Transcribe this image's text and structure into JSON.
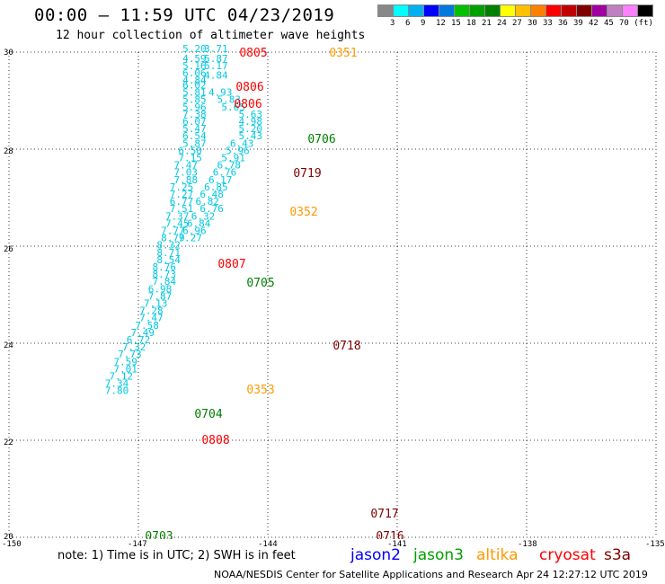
{
  "header": {
    "title": "00:00 – 11:59 UTC 04/23/2019",
    "subtitle": "12 hour collection of altimeter wave heights"
  },
  "colorbar": {
    "colors": [
      "#888888",
      "#00ffff",
      "#00b0f0",
      "#0000ff",
      "#0078dc",
      "#00c000",
      "#00a000",
      "#008000",
      "#ffff00",
      "#ffc000",
      "#ff8000",
      "#ff0000",
      "#c00000",
      "#800000",
      "#a000a0",
      "#c080c0",
      "#ff80ff",
      "#000000"
    ],
    "labels": [
      "3",
      "6",
      "9",
      "12",
      "15",
      "18",
      "21",
      "24",
      "27",
      "30",
      "33",
      "36",
      "39",
      "42",
      "45",
      "70 (ft)"
    ]
  },
  "axes": {
    "y_ticks": [
      "20",
      "22",
      "24",
      "26",
      "28",
      "30"
    ],
    "x_ticks": [
      "-150",
      "-147",
      "-144",
      "-141",
      "-138",
      "-135"
    ]
  },
  "chart_data": {
    "type": "scatter",
    "xlim": [
      -150,
      -135
    ],
    "ylim": [
      20,
      30
    ],
    "tracks": [
      {
        "name": "jason2",
        "color": "#0000ff",
        "points": []
      },
      {
        "name": "altika/jason3",
        "color": "#00c8e0",
        "points": [
          {
            "lon": -145.7,
            "lat": 30.0,
            "v": "5.20"
          },
          {
            "lon": -145.2,
            "lat": 30.0,
            "v": "3.71"
          },
          {
            "lon": -145.7,
            "lat": 29.8,
            "v": "4.59"
          },
          {
            "lon": -145.2,
            "lat": 29.8,
            "v": "5.87"
          },
          {
            "lon": -145.7,
            "lat": 29.65,
            "v": "5.16"
          },
          {
            "lon": -145.2,
            "lat": 29.65,
            "v": "5.17"
          },
          {
            "lon": -145.7,
            "lat": 29.5,
            "v": "6.06"
          },
          {
            "lon": -145.2,
            "lat": 29.45,
            "v": "4.84"
          },
          {
            "lon": -145.7,
            "lat": 29.35,
            "v": "4.84"
          },
          {
            "lon": -145.7,
            "lat": 29.25,
            "v": "6.02"
          },
          {
            "lon": -145.7,
            "lat": 29.1,
            "v": "5.81"
          },
          {
            "lon": -145.1,
            "lat": 29.1,
            "v": "4.93"
          },
          {
            "lon": -145.7,
            "lat": 28.95,
            "v": "5.85"
          },
          {
            "lon": -144.9,
            "lat": 28.95,
            "v": "5.83"
          },
          {
            "lon": -145.7,
            "lat": 28.8,
            "v": "5.96"
          },
          {
            "lon": -144.8,
            "lat": 28.8,
            "v": "5.65"
          },
          {
            "lon": -145.7,
            "lat": 28.65,
            "v": "7.38"
          },
          {
            "lon": -144.4,
            "lat": 28.65,
            "v": "5.63"
          },
          {
            "lon": -145.7,
            "lat": 28.5,
            "v": "6.07"
          },
          {
            "lon": -144.4,
            "lat": 28.5,
            "v": "4.98"
          },
          {
            "lon": -145.7,
            "lat": 28.35,
            "v": "5.47"
          },
          {
            "lon": -144.4,
            "lat": 28.35,
            "v": "5.20"
          },
          {
            "lon": -145.7,
            "lat": 28.2,
            "v": "6.54"
          },
          {
            "lon": -144.4,
            "lat": 28.2,
            "v": "5.43"
          },
          {
            "lon": -145.7,
            "lat": 28.05,
            "v": "5.87"
          },
          {
            "lon": -144.6,
            "lat": 28.05,
            "v": "6.43"
          },
          {
            "lon": -145.8,
            "lat": 27.9,
            "v": "6.50"
          },
          {
            "lon": -144.7,
            "lat": 27.9,
            "v": "5.96"
          },
          {
            "lon": -145.8,
            "lat": 27.75,
            "v": "7.15"
          },
          {
            "lon": -144.8,
            "lat": 27.75,
            "v": "5.91"
          },
          {
            "lon": -145.9,
            "lat": 27.6,
            "v": "7.47"
          },
          {
            "lon": -144.9,
            "lat": 27.6,
            "v": "6.78"
          },
          {
            "lon": -145.9,
            "lat": 27.45,
            "v": "7.03"
          },
          {
            "lon": -145.0,
            "lat": 27.45,
            "v": "6.76"
          },
          {
            "lon": -145.9,
            "lat": 27.3,
            "v": "7.88"
          },
          {
            "lon": -145.1,
            "lat": 27.3,
            "v": "6.17"
          },
          {
            "lon": -146.0,
            "lat": 27.15,
            "v": "7.25"
          },
          {
            "lon": -145.2,
            "lat": 27.15,
            "v": "6.85"
          },
          {
            "lon": -146.0,
            "lat": 27.0,
            "v": "7.27"
          },
          {
            "lon": -145.3,
            "lat": 27.0,
            "v": "6.48"
          },
          {
            "lon": -146.0,
            "lat": 26.85,
            "v": "6.77"
          },
          {
            "lon": -145.4,
            "lat": 26.85,
            "v": "6.82"
          },
          {
            "lon": -146.0,
            "lat": 26.7,
            "v": "7.51"
          },
          {
            "lon": -145.3,
            "lat": 26.7,
            "v": "6.76"
          },
          {
            "lon": -146.1,
            "lat": 26.55,
            "v": "7.37"
          },
          {
            "lon": -145.5,
            "lat": 26.55,
            "v": "6.32"
          },
          {
            "lon": -146.1,
            "lat": 26.4,
            "v": "7.45"
          },
          {
            "lon": -145.6,
            "lat": 26.4,
            "v": "6.84"
          },
          {
            "lon": -146.2,
            "lat": 26.25,
            "v": "7.77"
          },
          {
            "lon": -145.7,
            "lat": 26.25,
            "v": "6.96"
          },
          {
            "lon": -146.2,
            "lat": 26.1,
            "v": "8.79"
          },
          {
            "lon": -145.8,
            "lat": 26.1,
            "v": "7.27"
          },
          {
            "lon": -146.3,
            "lat": 25.95,
            "v": "8.32"
          },
          {
            "lon": -146.3,
            "lat": 25.8,
            "v": "8.71"
          },
          {
            "lon": -146.3,
            "lat": 25.65,
            "v": "8.54"
          },
          {
            "lon": -146.4,
            "lat": 25.5,
            "v": "8.76"
          },
          {
            "lon": -146.4,
            "lat": 25.35,
            "v": "8.73"
          },
          {
            "lon": -146.4,
            "lat": 25.2,
            "v": "7.84"
          },
          {
            "lon": -146.5,
            "lat": 25.05,
            "v": "6.98"
          },
          {
            "lon": -146.5,
            "lat": 24.9,
            "v": "7.87"
          },
          {
            "lon": -146.6,
            "lat": 24.75,
            "v": "7.13"
          },
          {
            "lon": -146.7,
            "lat": 24.6,
            "v": "7.28"
          },
          {
            "lon": -146.7,
            "lat": 24.45,
            "v": "7.47"
          },
          {
            "lon": -146.8,
            "lat": 24.3,
            "v": "7.58"
          },
          {
            "lon": -146.9,
            "lat": 24.15,
            "v": "7.49"
          },
          {
            "lon": -147.0,
            "lat": 24.0,
            "v": "6.72"
          },
          {
            "lon": -147.1,
            "lat": 23.85,
            "v": "7.32"
          },
          {
            "lon": -147.2,
            "lat": 23.7,
            "v": "7.73"
          },
          {
            "lon": -147.3,
            "lat": 23.55,
            "v": "7.59"
          },
          {
            "lon": -147.3,
            "lat": 23.4,
            "v": "7.01"
          },
          {
            "lon": -147.4,
            "lat": 23.25,
            "v": "7.12"
          },
          {
            "lon": -147.5,
            "lat": 23.1,
            "v": "7.34"
          },
          {
            "lon": -147.5,
            "lat": 22.95,
            "v": "7.80"
          }
        ]
      },
      {
        "name": "cryosat",
        "color": "#ff0000",
        "points": []
      }
    ],
    "labels": [
      {
        "text": "0805",
        "color": "#ff0000"
      },
      {
        "text": "0806",
        "color": "#ff0000"
      },
      {
        "text": "0806",
        "color": "#ff0000"
      },
      {
        "text": "0807",
        "color": "#ff0000"
      },
      {
        "text": "0808",
        "color": "#ff0000"
      },
      {
        "text": "0351",
        "color": "#ff9900"
      },
      {
        "text": "0352",
        "color": "#ff9900"
      },
      {
        "text": "0353",
        "color": "#ff9900"
      },
      {
        "text": "0706",
        "color": "#008000"
      },
      {
        "text": "0705",
        "color": "#008000"
      },
      {
        "text": "0704",
        "color": "#008000"
      },
      {
        "text": "0703",
        "color": "#008000"
      },
      {
        "text": "0719",
        "color": "#800000"
      },
      {
        "text": "0718",
        "color": "#800000"
      },
      {
        "text": "0717",
        "color": "#800000"
      },
      {
        "text": "0716",
        "color": "#800000"
      }
    ],
    "grid": true
  },
  "footer": {
    "note": "note:  1) Time is in UTC;  2) SWH is in feet",
    "legend": [
      {
        "name": "jason2",
        "color": "#0000ff"
      },
      {
        "name": "jason3",
        "color": "#00a000"
      },
      {
        "name": "altika",
        "color": "#ff9900"
      },
      {
        "name": "cryosat",
        "color": "#ff0000"
      },
      {
        "name": "s3a",
        "color": "#800000"
      }
    ],
    "credit": "NOAA/NESDIS Center for Satellite Applications and Research     Apr 24 12:27:12 UTC 2019"
  }
}
